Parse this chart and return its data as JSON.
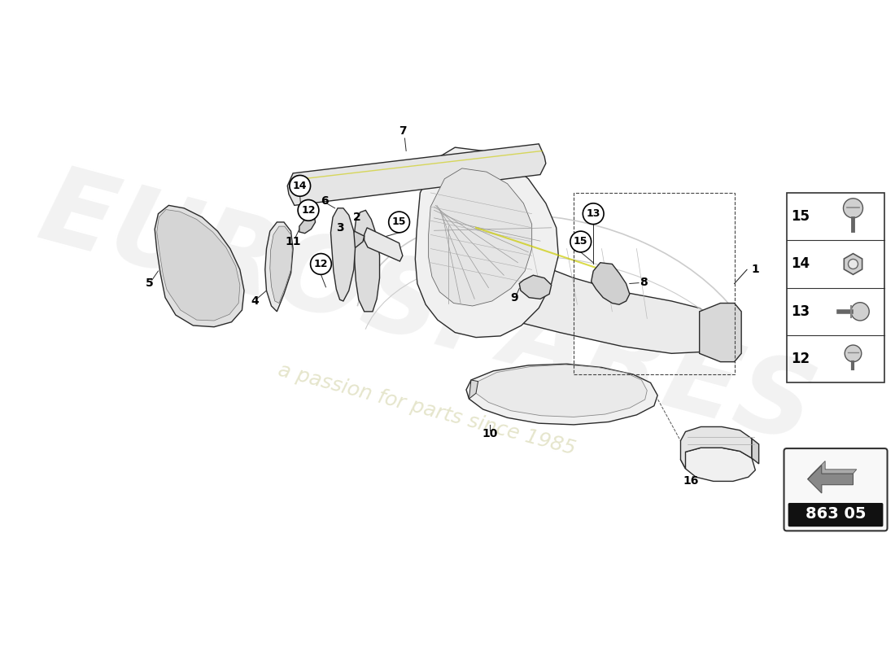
{
  "bg_color": "#ffffff",
  "watermark_text1": "EUROSPARES",
  "watermark_text2": "a passion for parts since 1985",
  "ref_code": "863 05",
  "hardware_items": [
    {
      "num": "15",
      "type": "screw_flat"
    },
    {
      "num": "14",
      "type": "nut_hex"
    },
    {
      "num": "13",
      "type": "bolt_pan"
    },
    {
      "num": "12",
      "type": "screw_cap"
    }
  ],
  "line_color": "#2a2a2a",
  "label_color": "#000000",
  "circle_color": "#000000",
  "dashed_color": "#555555",
  "part_color": "#e8e8e8",
  "part_edge": "#333333",
  "inner_color": "#f2f2f2"
}
